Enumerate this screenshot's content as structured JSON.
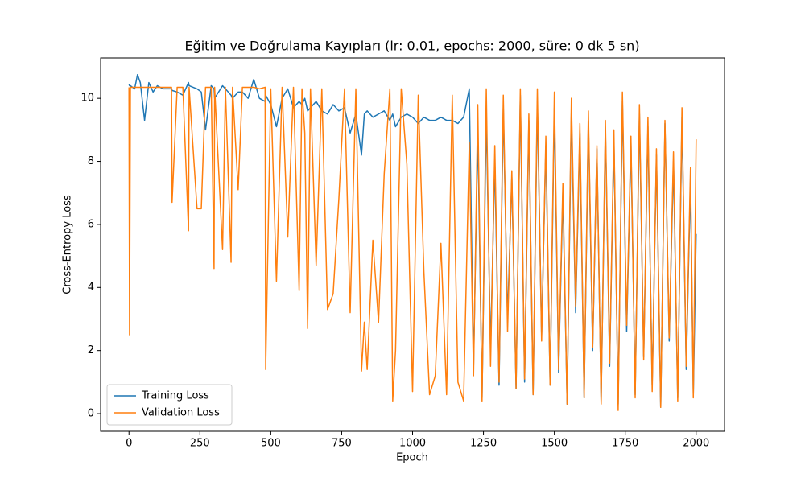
{
  "chart_data": {
    "type": "line",
    "title": "Eğitim ve Doğrulama Kayıpları (lr: 0.01, epochs: 2000, süre: 0 dk 5 sn)",
    "x_label": "Epoch",
    "y_label": "Cross-Entropy Loss",
    "x": [
      0,
      2,
      5,
      20,
      30,
      40,
      55,
      70,
      85,
      100,
      120,
      150,
      152,
      170,
      190,
      210,
      212,
      240,
      255,
      270,
      290,
      300,
      302,
      330,
      340,
      360,
      365,
      385,
      400,
      420,
      440,
      460,
      480,
      482,
      500,
      520,
      540,
      560,
      580,
      600,
      610,
      620,
      630,
      640,
      660,
      680,
      700,
      720,
      740,
      760,
      780,
      800,
      820,
      830,
      840,
      860,
      880,
      900,
      920,
      930,
      940,
      960,
      980,
      1000,
      1020,
      1040,
      1060,
      1080,
      1100,
      1120,
      1140,
      1160,
      1180,
      1200,
      1215,
      1230,
      1245,
      1260,
      1275,
      1290,
      1305,
      1320,
      1335,
      1350,
      1365,
      1380,
      1395,
      1410,
      1425,
      1440,
      1455,
      1470,
      1485,
      1500,
      1515,
      1530,
      1545,
      1560,
      1575,
      1590,
      1605,
      1620,
      1635,
      1650,
      1665,
      1680,
      1695,
      1710,
      1725,
      1740,
      1755,
      1770,
      1785,
      1800,
      1815,
      1830,
      1845,
      1860,
      1875,
      1890,
      1905,
      1920,
      1935,
      1950,
      1965,
      1980,
      1990,
      2000
    ],
    "series": [
      {
        "name": "Training Loss",
        "color": "#1f77b4",
        "values": [
          10.45,
          10.4,
          10.4,
          10.3,
          10.75,
          10.5,
          9.3,
          10.5,
          10.2,
          10.4,
          10.3,
          10.3,
          10.25,
          10.2,
          10.1,
          10.5,
          10.4,
          10.3,
          10.2,
          9.0,
          10.4,
          10.3,
          10.0,
          10.4,
          10.3,
          10.1,
          10.0,
          10.2,
          10.2,
          10.0,
          10.6,
          10.0,
          9.9,
          10.1,
          9.8,
          9.1,
          10.0,
          10.3,
          9.7,
          9.9,
          9.8,
          10.0,
          9.6,
          9.7,
          9.9,
          9.6,
          9.5,
          9.8,
          9.6,
          9.7,
          8.9,
          9.5,
          8.2,
          9.5,
          9.6,
          9.4,
          9.5,
          9.6,
          9.3,
          9.5,
          9.1,
          9.4,
          9.5,
          9.4,
          9.2,
          9.4,
          9.3,
          9.3,
          9.4,
          9.3,
          9.3,
          9.2,
          9.4,
          10.3,
          1.5,
          9.0,
          0.5,
          9.5,
          2.0,
          8.0,
          0.9,
          9.7,
          3.0,
          7.5,
          0.8,
          10.1,
          1.0,
          9.3,
          0.6,
          9.9,
          2.5,
          8.5,
          0.9,
          9.7,
          1.3,
          7.0,
          0.3,
          9.6,
          3.2,
          8.9,
          0.5,
          9.3,
          2.0,
          8.4,
          0.4,
          9.0,
          1.5,
          8.7,
          0.3,
          9.9,
          2.6,
          8.6,
          0.6,
          9.5,
          1.8,
          9.1,
          0.9,
          8.2,
          0.2,
          9.2,
          2.3,
          8.0,
          0.5,
          9.4,
          1.4,
          7.4,
          0.6,
          5.7
        ]
      },
      {
        "name": "Validation Loss",
        "color": "#ff7f0e",
        "values": [
          10.35,
          2.5,
          10.35,
          10.35,
          10.35,
          10.35,
          10.35,
          10.35,
          10.35,
          10.35,
          10.35,
          10.35,
          6.7,
          10.35,
          10.35,
          5.8,
          10.35,
          6.5,
          6.5,
          10.35,
          10.35,
          4.6,
          10.35,
          5.2,
          10.35,
          4.8,
          10.35,
          7.1,
          10.35,
          10.35,
          10.35,
          10.3,
          10.35,
          1.4,
          10.3,
          4.2,
          10.35,
          5.6,
          10.35,
          3.9,
          10.3,
          8.9,
          2.7,
          10.3,
          4.7,
          10.3,
          3.3,
          3.8,
          6.8,
          10.3,
          3.2,
          10.3,
          1.35,
          2.9,
          1.4,
          5.5,
          2.9,
          7.6,
          10.3,
          0.4,
          2.0,
          10.3,
          7.9,
          0.7,
          10.1,
          4.5,
          0.6,
          1.2,
          5.4,
          0.6,
          10.1,
          1.0,
          0.4,
          8.6,
          1.2,
          9.8,
          0.4,
          10.3,
          1.5,
          8.5,
          1.0,
          10.1,
          2.6,
          7.7,
          0.8,
          10.3,
          1.1,
          9.5,
          0.6,
          10.3,
          2.3,
          8.8,
          0.9,
          10.2,
          1.4,
          7.3,
          0.3,
          10.0,
          3.4,
          9.2,
          0.5,
          9.6,
          2.1,
          8.5,
          0.3,
          9.3,
          1.6,
          9.0,
          0.1,
          10.2,
          2.8,
          8.8,
          0.5,
          9.8,
          1.7,
          9.4,
          0.7,
          8.4,
          0.2,
          9.3,
          2.4,
          8.3,
          0.4,
          9.7,
          1.5,
          7.8,
          0.5,
          8.7
        ]
      }
    ],
    "xlim": [
      -100,
      2100
    ],
    "xticks": [
      0,
      250,
      500,
      750,
      1000,
      1250,
      1500,
      1750,
      2000
    ],
    "ylim": [
      -0.56,
      11.28
    ],
    "yticks": [
      0,
      2,
      4,
      6,
      8,
      10
    ],
    "legend": "lower left",
    "grid": false
  }
}
